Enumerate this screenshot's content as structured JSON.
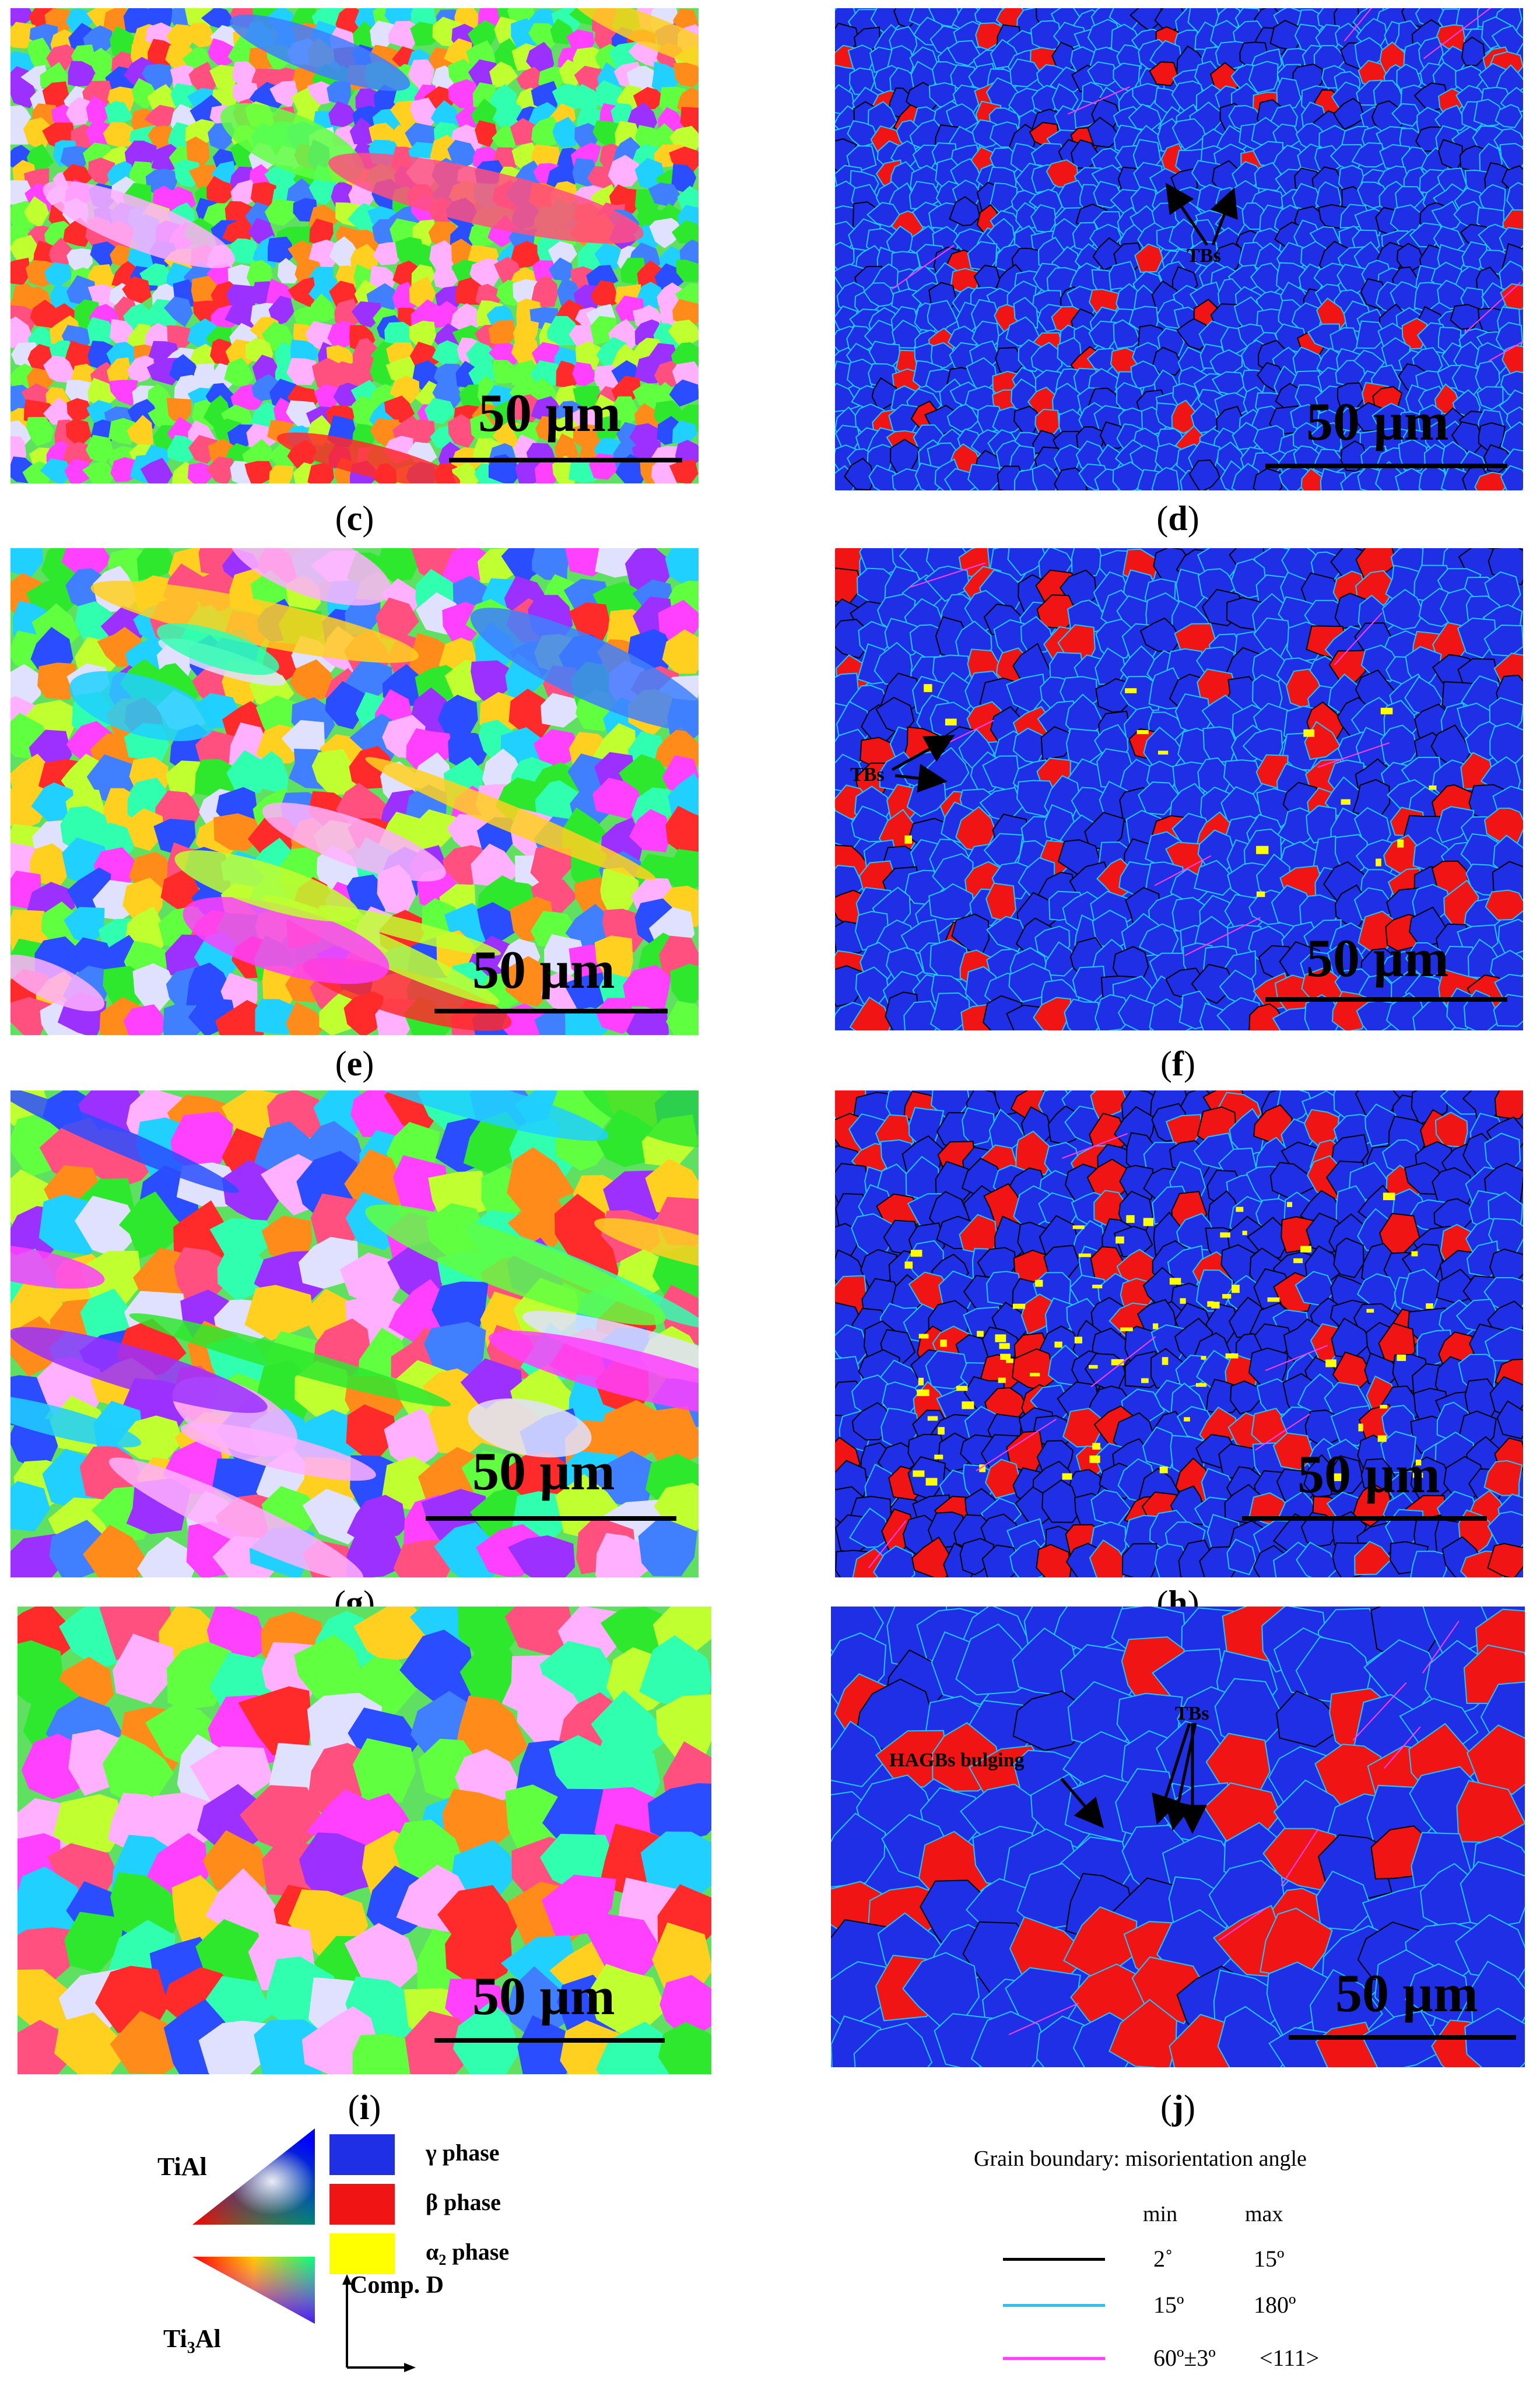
{
  "panels": [
    {
      "id": "c",
      "caption": "c",
      "scale_label": "50 µm",
      "type": "ipf"
    },
    {
      "id": "d",
      "caption": "d",
      "scale_label": "50 µm",
      "type": "phase",
      "annotations": [
        "TBs"
      ]
    },
    {
      "id": "e",
      "caption": "e",
      "scale_label": "50 µm",
      "type": "ipf"
    },
    {
      "id": "f",
      "caption": "f",
      "scale_label": "50 µm",
      "type": "phase",
      "annotations": [
        "TBs"
      ]
    },
    {
      "id": "g",
      "caption": "g",
      "scale_label": "50 µm",
      "type": "ipf"
    },
    {
      "id": "h",
      "caption": "h",
      "scale_label": "50 µm",
      "type": "phase"
    },
    {
      "id": "i",
      "caption": "i",
      "scale_label": "50 µm",
      "type": "ipf"
    },
    {
      "id": "j",
      "caption": "j",
      "scale_label": "50 µm",
      "type": "phase",
      "annotations": [
        "TBs",
        "HAGBs bulging"
      ]
    }
  ],
  "caption_paren_open": "(",
  "caption_paren_close": ")",
  "legend": {
    "ipf_labels": {
      "tial": "TiAl",
      "ti3al_main": "Ti",
      "ti3al_sub": "3",
      "ti3al_tail": "Al",
      "direction": "Comp. D"
    },
    "phases": [
      {
        "label_main": "γ phase",
        "label_sub": "",
        "label_tail": "",
        "color": "#1f2fe6"
      },
      {
        "label_main": "β phase",
        "label_sub": "",
        "label_tail": "",
        "color": "#f01414"
      },
      {
        "label_main": "α",
        "label_sub": "2",
        "label_tail": " phase",
        "color": "#ffff00"
      }
    ],
    "grain_boundary": {
      "title": "Grain boundary: misorientation angle",
      "min_label": "min",
      "max_label": "max",
      "rows": [
        {
          "min": "2˚",
          "max": "15º",
          "color": "#000000"
        },
        {
          "min": "15º",
          "max": "180º",
          "color": "#1ec8ff"
        },
        {
          "min": "60º±3º",
          "max": "<111>",
          "color": "#ff40ff"
        }
      ]
    }
  },
  "colors": {
    "gamma": "#1f2fe6",
    "beta": "#f01414",
    "alpha2": "#ffff00",
    "hagb": "#1ec8ff",
    "lagb": "#000000",
    "twin": "#ff40ff"
  }
}
